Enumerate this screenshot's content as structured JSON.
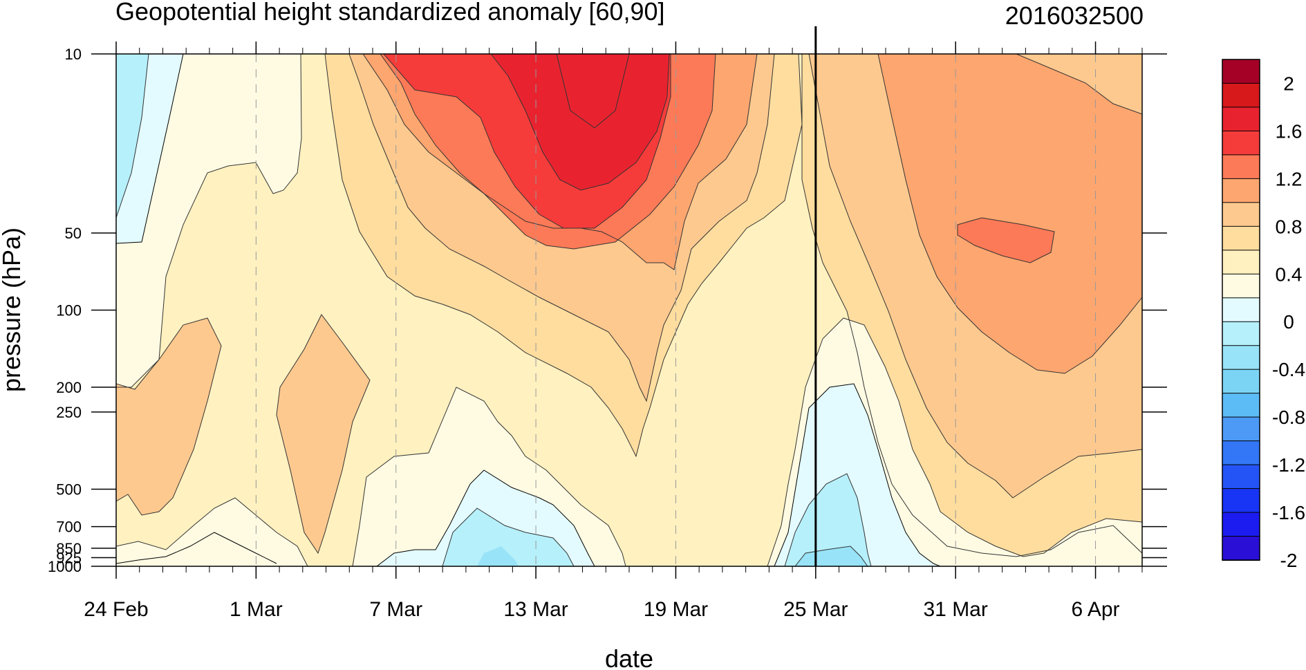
{
  "chart_data": {
    "type": "heatmap",
    "subtype": "filled-contour (time-pressure cross-section)",
    "title": "Geopotential height standardized anomaly [60,90]",
    "date_tag": "2016032500",
    "xlabel": "date",
    "ylabel": "pressure (hPa)",
    "y_scale": "log",
    "y_reversed": true,
    "ylim": [
      10,
      1000
    ],
    "y_ticks": [
      {
        "value": 10,
        "label": "10"
      },
      {
        "value": 50,
        "label": "50"
      },
      {
        "value": 100,
        "label": "100"
      },
      {
        "value": 200,
        "label": "200"
      },
      {
        "value": 250,
        "label": "250"
      },
      {
        "value": 500,
        "label": "500"
      },
      {
        "value": 700,
        "label": "700"
      },
      {
        "value": 850,
        "label": "850"
      },
      {
        "value": 925,
        "label": "925"
      },
      {
        "value": 1000,
        "label": "1000"
      }
    ],
    "x_ticks": [
      {
        "date": "2016-02-24",
        "label": "24 Feb"
      },
      {
        "date": "2016-03-01",
        "label": "1 Mar"
      },
      {
        "date": "2016-03-07",
        "label": "7 Mar"
      },
      {
        "date": "2016-03-13",
        "label": "13 Mar"
      },
      {
        "date": "2016-03-19",
        "label": "19 Mar"
      },
      {
        "date": "2016-03-25",
        "label": "25 Mar"
      },
      {
        "date": "2016-03-31",
        "label": "31 Mar"
      },
      {
        "date": "2016-04-06",
        "label": "6 Apr"
      }
    ],
    "xlim": [
      "2016-02-24",
      "2016-04-08"
    ],
    "analysis_date": "2016-03-25",
    "colorbar": {
      "labels": [
        "2",
        "1.6",
        "1.2",
        "0.8",
        "0.4",
        "0",
        "-0.4",
        "-0.8",
        "-1.2",
        "-1.6",
        "-2"
      ],
      "colors": [
        "#a50026",
        "#d7191c",
        "#e8232f",
        "#f53c3a",
        "#fc7a57",
        "#fda66f",
        "#fdc98f",
        "#fedd9e",
        "#fff1c0",
        "#fffbe3",
        "#e3fbff",
        "#b6f0fb",
        "#98e3f7",
        "#7bd4f4",
        "#5cbcf5",
        "#4d9af6",
        "#3377f6",
        "#2554f6",
        "#1834f4",
        "#1c1cf0",
        "#2a0fd6"
      ]
    },
    "series": [
      {
        "date": "2016-02-24",
        "values": {
          "10": -0.3,
          "50": -0.15,
          "100": 0.1,
          "200": 0.45,
          "500": 0.45,
          "850": 0.05,
          "1000": 0.0
        }
      },
      {
        "date": "2016-02-27",
        "values": {
          "10": 0.1,
          "50": 0.2,
          "100": 0.3,
          "200": 0.45,
          "500": 0.3,
          "850": 0.05,
          "1000": -0.1
        }
      },
      {
        "date": "2016-03-01",
        "values": {
          "10": 0.1,
          "50": 0.35,
          "100": 0.35,
          "200": 0.3,
          "500": 0.2,
          "850": 0.0,
          "1000": -0.05
        }
      },
      {
        "date": "2016-03-04",
        "values": {
          "10": 0.4,
          "50": 0.4,
          "100": 0.4,
          "200": 0.6,
          "500": 0.5,
          "850": 0.2,
          "1000": 0.1
        }
      },
      {
        "date": "2016-03-07",
        "values": {
          "10": 1.1,
          "50": 0.6,
          "100": 0.35,
          "200": 0.3,
          "500": 0.1,
          "850": 0.0,
          "1000": 0.0
        }
      },
      {
        "date": "2016-03-10",
        "values": {
          "10": 1.4,
          "50": 0.9,
          "100": 0.5,
          "200": 0.2,
          "500": -0.2,
          "850": -0.4,
          "1000": -0.5
        }
      },
      {
        "date": "2016-03-13",
        "values": {
          "10": 1.6,
          "50": 1.1,
          "100": 0.6,
          "200": 0.35,
          "500": 0.0,
          "850": -0.3,
          "1000": -0.4
        }
      },
      {
        "date": "2016-03-16",
        "values": {
          "10": 1.8,
          "50": 1.2,
          "100": 0.7,
          "200": 0.45,
          "500": 0.2,
          "850": 0.0,
          "1000": 0.0
        }
      },
      {
        "date": "2016-03-19",
        "values": {
          "10": 1.3,
          "50": 0.8,
          "100": 0.5,
          "200": 0.4,
          "500": 0.3,
          "850": 0.1,
          "1000": 0.0
        }
      },
      {
        "date": "2016-03-22",
        "values": {
          "10": 1.0,
          "50": 0.55,
          "100": 0.4,
          "200": 0.3,
          "500": 0.1,
          "850": 0.0,
          "1000": 0.0
        }
      },
      {
        "date": "2016-03-25",
        "values": {
          "10": 0.6,
          "50": 0.4,
          "100": 0.2,
          "200": 0.0,
          "500": -0.3,
          "850": -0.5,
          "1000": -0.6
        }
      },
      {
        "date": "2016-03-28",
        "values": {
          "10": 0.5,
          "50": 0.4,
          "100": 0.3,
          "200": 0.1,
          "500": -0.1,
          "850": -0.3,
          "1000": -0.3
        }
      },
      {
        "date": "2016-03-31",
        "values": {
          "10": 0.9,
          "50": 0.95,
          "100": 0.8,
          "200": 0.5,
          "500": 0.3,
          "850": 0.0,
          "1000": 0.0
        }
      },
      {
        "date": "2016-04-03",
        "values": {
          "10": 0.85,
          "50": 1.05,
          "100": 0.9,
          "200": 0.6,
          "500": 0.4,
          "850": 0.2,
          "1000": 0.1
        }
      },
      {
        "date": "2016-04-06",
        "values": {
          "10": 0.5,
          "50": 0.8,
          "100": 0.85,
          "200": 0.6,
          "500": 0.45,
          "850": 0.3,
          "1000": 0.2
        }
      },
      {
        "date": "2016-04-08",
        "values": {
          "10": 0.45,
          "50": 0.65,
          "100": 0.75,
          "200": 0.55,
          "500": 0.4,
          "850": 0.3,
          "1000": 0.15
        }
      }
    ]
  }
}
